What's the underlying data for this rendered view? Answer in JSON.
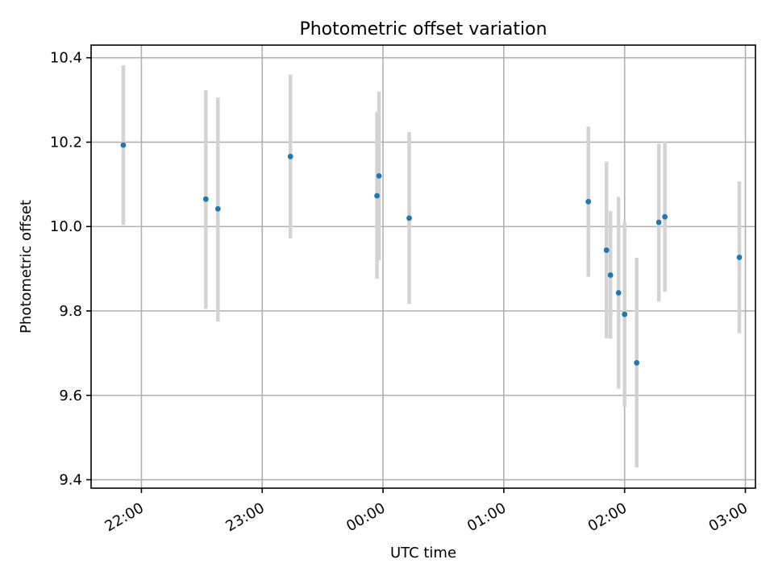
{
  "chart_data": {
    "type": "scatter",
    "title": "Photometric offset variation",
    "xlabel": "UTC time",
    "ylabel": "Photometric offset",
    "x_unit": "UTC time",
    "xlim": [
      "21:35",
      "03:05"
    ],
    "ylim": [
      9.38,
      10.43
    ],
    "x_ticks": [
      "22:00",
      "23:00",
      "00:00",
      "01:00",
      "02:00",
      "03:00"
    ],
    "y_ticks": [
      "9.4",
      "9.6",
      "9.8",
      "10.0",
      "10.2",
      "10.4"
    ],
    "grid": true,
    "points": [
      {
        "time": "21:51",
        "y": 10.193,
        "low": 10.004,
        "high": 10.382
      },
      {
        "time": "22:32",
        "y": 10.065,
        "low": 9.805,
        "high": 10.323
      },
      {
        "time": "22:38",
        "y": 10.042,
        "low": 9.775,
        "high": 10.306
      },
      {
        "time": "23:14",
        "y": 10.166,
        "low": 9.972,
        "high": 10.36
      },
      {
        "time": "23:57",
        "y": 10.073,
        "low": 9.876,
        "high": 10.272
      },
      {
        "time": "23:58",
        "y": 10.12,
        "low": 9.92,
        "high": 10.32
      },
      {
        "time": "00:13",
        "y": 10.02,
        "low": 9.817,
        "high": 10.224
      },
      {
        "time": "01:42",
        "y": 10.059,
        "low": 9.881,
        "high": 10.237
      },
      {
        "time": "01:51",
        "y": 9.944,
        "low": 9.735,
        "high": 10.154
      },
      {
        "time": "01:53",
        "y": 9.885,
        "low": 9.734,
        "high": 10.037
      },
      {
        "time": "01:57",
        "y": 9.843,
        "low": 9.616,
        "high": 10.07
      },
      {
        "time": "02:00",
        "y": 9.792,
        "low": 9.573,
        "high": 10.011
      },
      {
        "time": "02:06",
        "y": 9.677,
        "low": 9.429,
        "high": 9.926
      },
      {
        "time": "02:17",
        "y": 10.01,
        "low": 9.822,
        "high": 10.196
      },
      {
        "time": "02:20",
        "y": 10.023,
        "low": 9.846,
        "high": 10.201
      },
      {
        "time": "02:57",
        "y": 9.927,
        "low": 9.747,
        "high": 10.107
      }
    ],
    "colors": {
      "point": "#1f77b4",
      "errorbar": "#d3d3d3"
    }
  }
}
